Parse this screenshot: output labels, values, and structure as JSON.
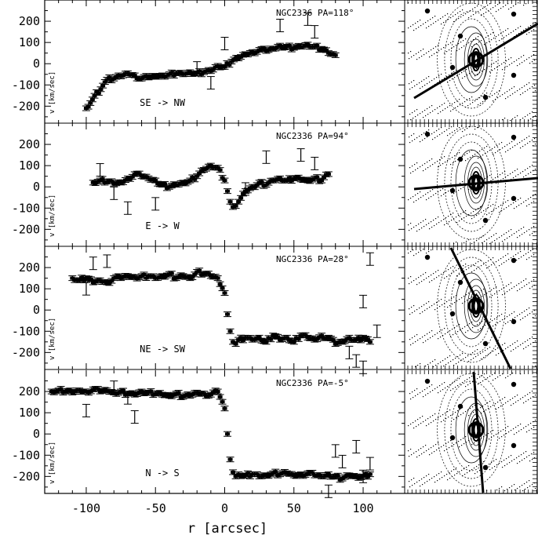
{
  "chart_data": {
    "type": "scatter",
    "xlabel": "r [arcsec]",
    "xlim": [
      -130,
      130
    ],
    "x_ticks": [
      -100,
      -50,
      0,
      50,
      100
    ],
    "shared_x": true,
    "panels": [
      {
        "title": "NGC2336  PA=118°",
        "direction": "SE -> NW",
        "ylabel": "v  [km/sec]",
        "ylim": [
          -280,
          300
        ],
        "y_ticks": [
          -200,
          -100,
          0,
          100,
          200
        ],
        "x": [
          -100,
          -85,
          -80,
          -75,
          -70,
          -65,
          -60,
          -55,
          -50,
          -45,
          -40,
          -35,
          -30,
          -25,
          -20,
          -15,
          -10,
          -5,
          0,
          5,
          10,
          15,
          20,
          25,
          30,
          35,
          40,
          45,
          50,
          55,
          60,
          65,
          70,
          75,
          80
        ],
        "v": [
          -210,
          -75,
          -70,
          -60,
          -45,
          -55,
          -70,
          -65,
          -60,
          -55,
          -50,
          -45,
          -50,
          -40,
          -45,
          -40,
          -35,
          -10,
          -15,
          10,
          25,
          45,
          55,
          65,
          60,
          70,
          85,
          80,
          75,
          80,
          90,
          80,
          70,
          50,
          40
        ],
        "extra_points": [
          [
            0,
            95
          ],
          [
            40,
            180
          ],
          [
            60,
            210
          ],
          [
            65,
            150
          ],
          [
            -20,
            -20
          ],
          [
            -10,
            -90
          ]
        ]
      },
      {
        "title": "NGC2336  PA=94°",
        "direction": "E -> W",
        "ylabel": "v  [km/sec]",
        "ylim": [
          -280,
          300
        ],
        "y_ticks": [
          -200,
          -100,
          0,
          100,
          200
        ],
        "x": [
          -95,
          -90,
          -85,
          -80,
          -75,
          -70,
          -65,
          -60,
          -55,
          -50,
          -45,
          -40,
          -35,
          -30,
          -25,
          -20,
          -15,
          -10,
          -5,
          0,
          2,
          4,
          6,
          8,
          10,
          15,
          20,
          25,
          30,
          35,
          40,
          45,
          50,
          55,
          60,
          65,
          70,
          75
        ],
        "v": [
          20,
          30,
          25,
          15,
          20,
          40,
          60,
          50,
          40,
          30,
          10,
          0,
          10,
          20,
          30,
          50,
          80,
          100,
          90,
          30,
          -20,
          -70,
          -95,
          -90,
          -70,
          -20,
          0,
          20,
          10,
          30,
          40,
          30,
          40,
          35,
          30,
          40,
          30,
          60
        ],
        "extra_points": [
          [
            -90,
            80
          ],
          [
            -70,
            -100
          ],
          [
            -80,
            -30
          ],
          [
            -50,
            -80
          ],
          [
            15,
            -10
          ],
          [
            30,
            140
          ],
          [
            65,
            110
          ],
          [
            55,
            150
          ]
        ]
      },
      {
        "title": "NGC2336  PA=28°",
        "direction": "NE -> SW",
        "ylabel": "v  [km/sec]",
        "ylim": [
          -280,
          300
        ],
        "y_ticks": [
          -200,
          -100,
          0,
          100,
          200
        ],
        "x": [
          -110,
          -105,
          -100,
          -95,
          -90,
          -85,
          -80,
          -75,
          -70,
          -65,
          -60,
          -55,
          -50,
          -45,
          -40,
          -35,
          -30,
          -25,
          -20,
          -15,
          -10,
          -5,
          0,
          2,
          4,
          6,
          8,
          10,
          15,
          20,
          25,
          30,
          35,
          40,
          45,
          50,
          55,
          60,
          65,
          70,
          75,
          80,
          85,
          90,
          95,
          100,
          105
        ],
        "v": [
          150,
          140,
          150,
          130,
          140,
          130,
          150,
          150,
          160,
          155,
          160,
          160,
          150,
          160,
          170,
          150,
          160,
          150,
          180,
          170,
          160,
          150,
          80,
          -20,
          -100,
          -150,
          -160,
          -140,
          -130,
          -140,
          -130,
          -150,
          -120,
          -140,
          -130,
          -150,
          -120,
          -130,
          -140,
          -120,
          -130,
          -160,
          -150,
          -130,
          -140,
          -130,
          -150
        ],
        "extra_points": [
          [
            -100,
            100
          ],
          [
            -95,
            220
          ],
          [
            -85,
            230
          ],
          [
            90,
            -200
          ],
          [
            95,
            -240
          ],
          [
            100,
            40
          ],
          [
            105,
            240
          ],
          [
            100,
            -270
          ],
          [
            110,
            -100
          ]
        ]
      },
      {
        "title": "NGC2336  PA=-5°",
        "direction": "N -> S",
        "ylabel": "v  [km/sec]",
        "ylim": [
          -280,
          300
        ],
        "y_ticks": [
          -200,
          -100,
          0,
          100,
          200
        ],
        "x": [
          -125,
          -120,
          -115,
          -110,
          -105,
          -100,
          -95,
          -90,
          -85,
          -80,
          -75,
          -70,
          -65,
          -60,
          -55,
          -50,
          -45,
          -40,
          -35,
          -30,
          -25,
          -20,
          -15,
          -10,
          -5,
          0,
          2,
          4,
          6,
          8,
          10,
          15,
          20,
          25,
          30,
          35,
          40,
          45,
          50,
          55,
          60,
          65,
          70,
          75,
          80,
          85,
          90,
          95,
          100,
          105
        ],
        "v": [
          200,
          205,
          200,
          195,
          205,
          200,
          210,
          200,
          205,
          195,
          200,
          190,
          185,
          200,
          195,
          190,
          185,
          180,
          190,
          175,
          180,
          195,
          190,
          185,
          200,
          120,
          0,
          -120,
          -180,
          -200,
          -190,
          -195,
          -190,
          -200,
          -195,
          -185,
          -190,
          -185,
          -195,
          -190,
          -185,
          -195,
          -200,
          -190,
          -200,
          -210,
          -195,
          -200,
          -200,
          -190
        ],
        "extra_points": [
          [
            -100,
            110
          ],
          [
            -65,
            80
          ],
          [
            -70,
            170
          ],
          [
            -80,
            220
          ],
          [
            80,
            -80
          ],
          [
            85,
            -130
          ],
          [
            75,
            -270
          ],
          [
            95,
            -60
          ],
          [
            100,
            -200
          ],
          [
            105,
            -140
          ]
        ]
      }
    ]
  }
}
